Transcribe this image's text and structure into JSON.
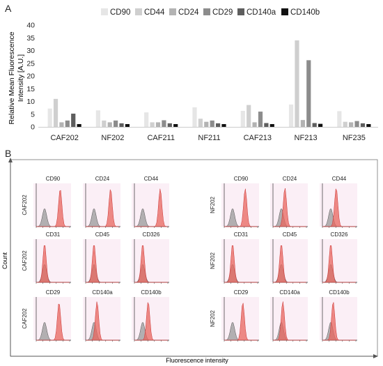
{
  "panels": {
    "a": "A",
    "b": "B"
  },
  "chart_data": [
    {
      "type": "bar",
      "ylabel_lines": [
        "Relative Mean Fluorescence",
        "Intensity [A.U.]"
      ],
      "ylim": [
        0,
        40
      ],
      "yticks": [
        0,
        5,
        10,
        15,
        20,
        25,
        30,
        35,
        40
      ],
      "categories": [
        "CAF202",
        "NF202",
        "CAF211",
        "NF211",
        "CAF213",
        "NF213",
        "NF235"
      ],
      "legend_position": "top",
      "series": [
        {
          "name": "CD90",
          "color": "#e6e6e6",
          "values": [
            7.2,
            6.5,
            5.7,
            7.7,
            6.3,
            8.8,
            6.2
          ]
        },
        {
          "name": "CD44",
          "color": "#cfcfcf",
          "values": [
            11.0,
            2.5,
            1.8,
            3.2,
            8.6,
            34.0,
            2.0
          ]
        },
        {
          "name": "CD24",
          "color": "#b3b3b3",
          "values": [
            1.8,
            1.8,
            1.8,
            2.0,
            1.8,
            2.7,
            1.8
          ]
        },
        {
          "name": "CD29",
          "color": "#8c8c8c",
          "values": [
            2.5,
            2.5,
            2.6,
            2.5,
            6.0,
            26.2,
            2.3
          ]
        },
        {
          "name": "CD140a",
          "color": "#5e5e5e",
          "values": [
            5.2,
            1.4,
            1.4,
            1.4,
            1.5,
            1.5,
            1.4
          ]
        },
        {
          "name": "CD140b",
          "color": "#111111",
          "values": [
            1.1,
            1.1,
            1.1,
            1.1,
            1.1,
            1.2,
            1.1
          ]
        }
      ]
    },
    {
      "type": "histogram-overlay",
      "ylabel": "Count",
      "xlabel": "Fluorescence intensity",
      "groups": [
        {
          "sample": "CAF202",
          "rows": [
            [
              {
                "marker": "CD90",
                "shift": 0.52
              },
              {
                "marker": "CD24",
                "shift": 0.55
              },
              {
                "marker": "CD44",
                "shift": 0.58
              }
            ],
            [
              {
                "marker": "CD31",
                "shift": 0.0
              },
              {
                "marker": "CD45",
                "shift": 0.0
              },
              {
                "marker": "CD326",
                "shift": 0.0
              }
            ],
            [
              {
                "marker": "CD29",
                "shift": 0.48
              },
              {
                "marker": "CD140a",
                "shift": 0.1
              },
              {
                "marker": "CD140b",
                "shift": 0.18
              }
            ]
          ]
        },
        {
          "sample": "NF202",
          "rows": [
            [
              {
                "marker": "CD90",
                "shift": 0.42
              },
              {
                "marker": "CD24",
                "shift": 0.12
              },
              {
                "marker": "CD44",
                "shift": 0.18
              }
            ],
            [
              {
                "marker": "CD31",
                "shift": 0.0
              },
              {
                "marker": "CD45",
                "shift": 0.0
              },
              {
                "marker": "CD326",
                "shift": 0.0
              }
            ],
            [
              {
                "marker": "CD29",
                "shift": 0.34
              },
              {
                "marker": "CD140a",
                "shift": 0.05
              },
              {
                "marker": "CD140b",
                "shift": 0.08
              }
            ]
          ]
        }
      ]
    }
  ]
}
